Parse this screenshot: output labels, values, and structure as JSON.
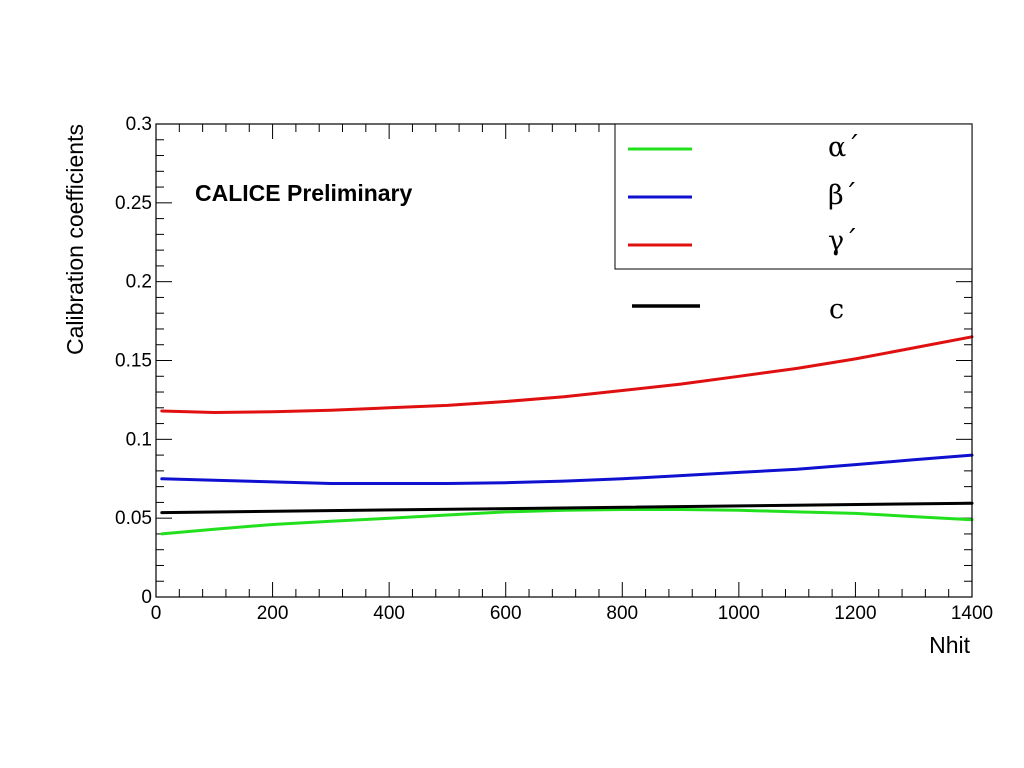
{
  "chart_data": {
    "type": "line",
    "title": "",
    "annotation": "CALICE Preliminary",
    "xlabel": "Nhit",
    "ylabel": "Calibration coefficients",
    "xlim": [
      0,
      1400
    ],
    "ylim": [
      0,
      0.3
    ],
    "xticks": [
      0,
      200,
      400,
      600,
      800,
      1000,
      1200,
      1400
    ],
    "xtick_labels": [
      "0",
      "200",
      "400",
      "600",
      "800",
      "1000",
      "1200",
      "1400"
    ],
    "yticks": [
      0,
      0.05,
      0.1,
      0.15,
      0.2,
      0.25,
      0.3
    ],
    "ytick_labels": [
      "0",
      "0.05",
      "0.1",
      "0.15",
      "0.2",
      "0.25",
      "0.3"
    ],
    "grid": false,
    "legend_placement": "top-right",
    "series": [
      {
        "name": "α´",
        "color": "#22e01e",
        "x": [
          10,
          100,
          200,
          300,
          400,
          500,
          600,
          700,
          800,
          900,
          1000,
          1100,
          1200,
          1300,
          1400
        ],
        "y": [
          0.04,
          0.043,
          0.046,
          0.048,
          0.05,
          0.052,
          0.054,
          0.055,
          0.0555,
          0.0555,
          0.055,
          0.054,
          0.053,
          0.051,
          0.049
        ]
      },
      {
        "name": "β´",
        "color": "#1010d0",
        "x": [
          10,
          100,
          200,
          300,
          400,
          500,
          600,
          700,
          800,
          900,
          1000,
          1100,
          1200,
          1300,
          1400
        ],
        "y": [
          0.075,
          0.074,
          0.073,
          0.072,
          0.072,
          0.072,
          0.0725,
          0.0735,
          0.075,
          0.077,
          0.079,
          0.081,
          0.084,
          0.087,
          0.09
        ]
      },
      {
        "name": "γ´",
        "color": "#e01010",
        "x": [
          10,
          100,
          200,
          300,
          400,
          500,
          600,
          700,
          800,
          900,
          1000,
          1100,
          1200,
          1300,
          1400
        ],
        "y": [
          0.118,
          0.117,
          0.1175,
          0.1185,
          0.12,
          0.1215,
          0.124,
          0.127,
          0.131,
          0.135,
          0.14,
          0.145,
          0.151,
          0.158,
          0.165
        ]
      },
      {
        "name": "c",
        "color": "#000000",
        "x": [
          10,
          1400
        ],
        "y": [
          0.0535,
          0.0595
        ]
      }
    ]
  }
}
